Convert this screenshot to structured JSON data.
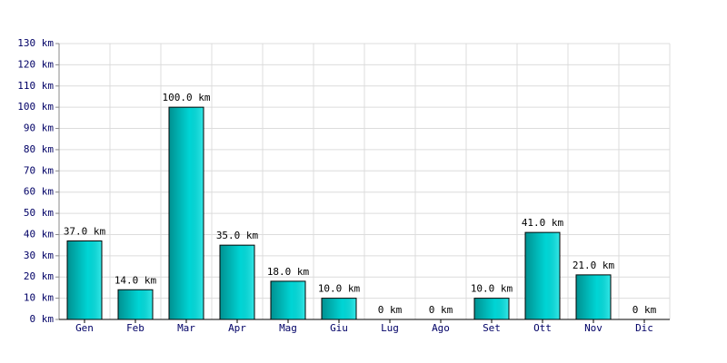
{
  "chart_data": {
    "type": "bar",
    "categories": [
      "Gen",
      "Feb",
      "Mar",
      "Apr",
      "Mag",
      "Giu",
      "Lug",
      "Ago",
      "Set",
      "Ott",
      "Nov",
      "Dic"
    ],
    "values": [
      37,
      14,
      100,
      35,
      18,
      10,
      0,
      0,
      10,
      41,
      21,
      0
    ],
    "value_labels": [
      "37.0 km",
      "14.0 km",
      "100.0 km",
      "35.0 km",
      "18.0 km",
      "10.0 km",
      "0 km",
      "0 km",
      "10.0 km",
      "41.0 km",
      "21.0 km",
      "0 km"
    ],
    "color": "#00e0e0",
    "ylim": [
      0,
      130
    ],
    "yticks": [
      {
        "value": 0,
        "label": "0 km"
      },
      {
        "value": 10,
        "label": "10 km"
      },
      {
        "value": 20,
        "label": "20 km"
      },
      {
        "value": 30,
        "label": "30 km"
      },
      {
        "value": 40,
        "label": "40 km"
      },
      {
        "value": 50,
        "label": "50 km"
      },
      {
        "value": 60,
        "label": "60 km"
      },
      {
        "value": 70,
        "label": "70 km"
      },
      {
        "value": 80,
        "label": "80 km"
      },
      {
        "value": 90,
        "label": "90 km"
      },
      {
        "value": 100,
        "label": "100 km"
      },
      {
        "value": 110,
        "label": "110 km"
      },
      {
        "value": 120,
        "label": "120 km"
      },
      {
        "value": 130,
        "label": "130 km"
      }
    ],
    "grid": true
  }
}
